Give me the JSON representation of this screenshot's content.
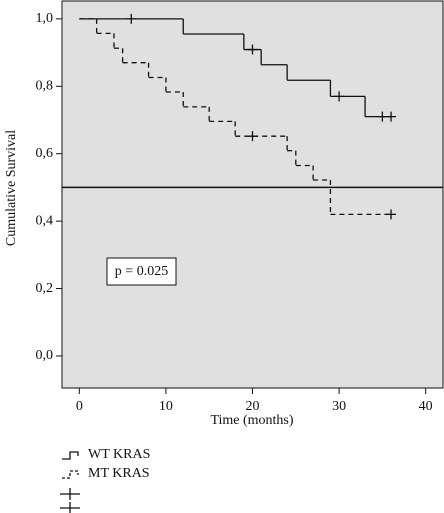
{
  "chart_data": {
    "type": "step",
    "xlabel": "Time (months)",
    "ylabel": "Cumulative Survival",
    "xlim": [
      -2,
      42
    ],
    "ylim": [
      -0.095,
      1.053
    ],
    "xticks": [
      0,
      10,
      20,
      30,
      40
    ],
    "yticks": [
      {
        "value": 0,
        "label": "0,0"
      },
      {
        "value": 0.2,
        "label": "0,2"
      },
      {
        "value": 0.4,
        "label": "0,4"
      },
      {
        "value": 0.6,
        "label": "0,6"
      },
      {
        "value": 0.8,
        "label": "0,8"
      },
      {
        "value": 1.0,
        "label": "1,0"
      }
    ],
    "hline": 0.5,
    "annotation": "p = 0.025",
    "background": "#e0e0e0",
    "series": [
      {
        "name": "WT KRAS",
        "color": "#111111",
        "dashed": false,
        "x": [
          0,
          12,
          19,
          21,
          24,
          29,
          33,
          36
        ],
        "values": [
          1.0,
          0.955,
          0.909,
          0.864,
          0.818,
          0.77,
          0.71,
          0.71
        ],
        "censored_x": [
          6,
          20,
          30,
          35,
          36
        ],
        "censored_values": [
          1.0,
          0.909,
          0.77,
          0.71,
          0.71
        ]
      },
      {
        "name": "MT KRAS",
        "color": "#111111",
        "dashed": true,
        "x": [
          0,
          2,
          4,
          5,
          8,
          10,
          12,
          15,
          18,
          24,
          25,
          27,
          29,
          36
        ],
        "values": [
          1.0,
          0.957,
          0.913,
          0.87,
          0.826,
          0.783,
          0.739,
          0.696,
          0.652,
          0.609,
          0.565,
          0.522,
          0.42,
          0.42
        ],
        "censored_x": [
          20,
          36
        ],
        "censored_values": [
          0.652,
          0.42
        ]
      }
    ]
  }
}
